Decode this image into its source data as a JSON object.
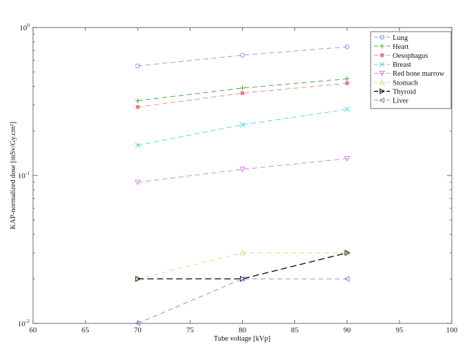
{
  "chart_data": {
    "type": "line",
    "xlabel": "Tube voltage [kVp]",
    "ylabel": "KAP-normalized dose [mSv/Gy.cm²]",
    "xlim": [
      60,
      100
    ],
    "ylim": [
      0.01,
      1
    ],
    "yscale": "log",
    "x_ticks": [
      60,
      65,
      70,
      75,
      80,
      85,
      90,
      95,
      100
    ],
    "y_ticks": [
      {
        "value": 0.01,
        "base": "10",
        "exp": "-2"
      },
      {
        "value": 0.1,
        "base": "10",
        "exp": "-1"
      },
      {
        "value": 1,
        "base": "10",
        "exp": "0"
      }
    ],
    "legend_position": "top-right",
    "x": [
      70,
      80,
      90
    ],
    "series": [
      {
        "name": "Lung",
        "values": [
          0.55,
          0.65,
          0.74
        ],
        "color": "#8c8cf0",
        "marker": "circle",
        "dash": "7,5",
        "width": 0.9
      },
      {
        "name": "Heart",
        "values": [
          0.32,
          0.39,
          0.45
        ],
        "color": "#2e9b2e",
        "marker": "plus",
        "dash": "7,5",
        "width": 0.9
      },
      {
        "name": "Oesophagus",
        "values": [
          0.29,
          0.36,
          0.42
        ],
        "color": "#f07a7a",
        "marker": "square",
        "dash": "7,5",
        "width": 0.9
      },
      {
        "name": "Breast",
        "values": [
          0.16,
          0.22,
          0.28
        ],
        "color": "#3ed6d6",
        "marker": "x",
        "dash": "7,5",
        "width": 0.9
      },
      {
        "name": "Red bone marrow",
        "values": [
          0.09,
          0.11,
          0.13
        ],
        "color": "#d070e8",
        "marker": "triangle-down",
        "dash": "7,5",
        "width": 0.9
      },
      {
        "name": "Stomach",
        "values": [
          0.02,
          0.03,
          0.03
        ],
        "color": "#d9d98a",
        "marker": "triangle-up",
        "dash": "7,5",
        "width": 0.9
      },
      {
        "name": "Thyroid",
        "values": [
          0.02,
          0.02,
          0.03
        ],
        "color": "#000000",
        "marker": "triangle-right",
        "dash": "9,5",
        "width": 1.3
      },
      {
        "name": "Liver",
        "values": [
          0.01,
          0.02,
          0.02
        ],
        "color": "#8080c8",
        "marker": "triangle-left",
        "dash": "7,5",
        "width": 0.9
      }
    ]
  }
}
